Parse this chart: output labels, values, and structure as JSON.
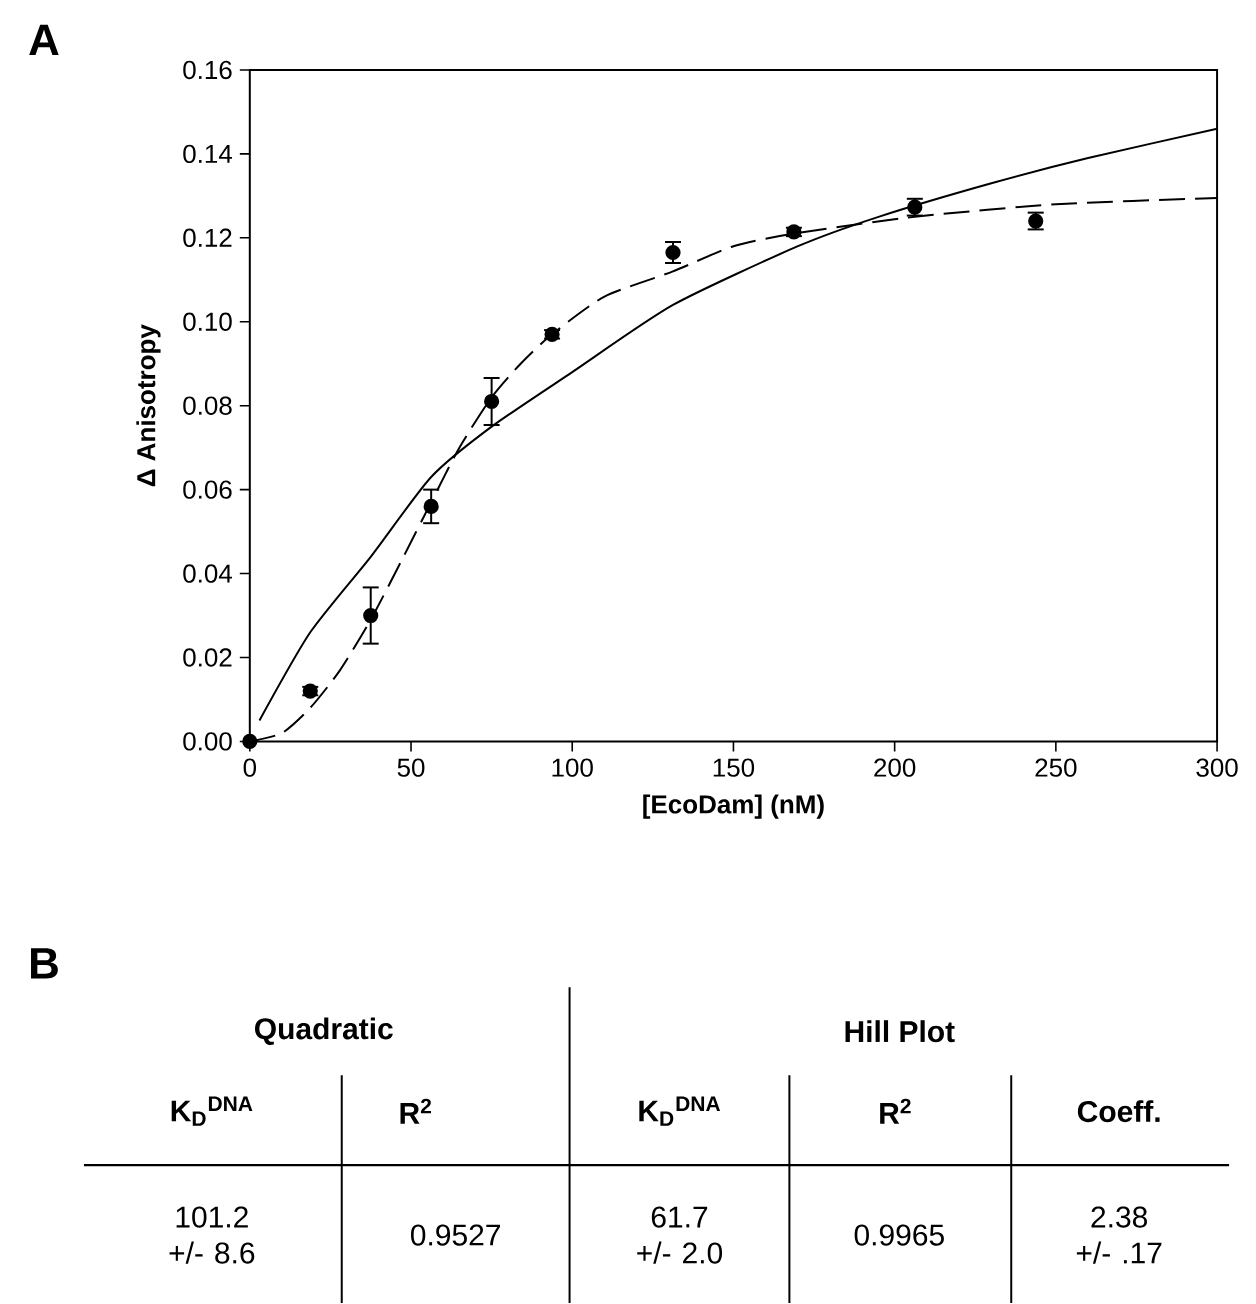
{
  "chart_data": {
    "type": "scatter",
    "xlabel": "[EcoDam] (nM)",
    "ylabel": "Δ Anisotropy",
    "xlim": [
      0,
      300
    ],
    "xticks": [
      0,
      50,
      100,
      150,
      200,
      250,
      300
    ],
    "ylim": [
      0,
      0.16
    ],
    "yticks": [
      {
        "value": 0,
        "label": "0.00"
      },
      {
        "value": 0.02,
        "label": "0.02"
      },
      {
        "value": 0.04,
        "label": "0.04"
      },
      {
        "value": 0.06,
        "label": "0.06"
      },
      {
        "value": 0.08,
        "label": "0.08"
      },
      {
        "value": 0.1,
        "label": "0.10"
      },
      {
        "value": 0.12,
        "label": "0.12"
      },
      {
        "value": 0.14,
        "label": "0.14"
      },
      {
        "value": 0.16,
        "label": "0.16"
      }
    ],
    "grid": false,
    "series": [
      {
        "type": "line",
        "line_style": "solid",
        "marker": "none",
        "color": "#000000",
        "x": [
          3,
          18.75,
          37.5,
          56.25,
          75,
          100,
          131.25,
          170,
          195,
          230,
          260,
          300
        ],
        "values": [
          0.005,
          0.026,
          0.044,
          0.063,
          0.075,
          0.088,
          0.104,
          0.118,
          0.125,
          0.133,
          0.139,
          0.146
        ]
      },
      {
        "type": "line",
        "line_style": "dashed",
        "marker": "none",
        "color": "#000000",
        "x": [
          0,
          10,
          18.75,
          28,
          37.5,
          47,
          56.25,
          65,
          75,
          84,
          93.75,
          110,
          131.25,
          150,
          168.75,
          206.25,
          250,
          300
        ],
        "values": [
          0,
          0.002,
          0.008,
          0.017,
          0.029,
          0.043,
          0.057,
          0.07,
          0.082,
          0.09,
          0.097,
          0.106,
          0.112,
          0.118,
          0.121,
          0.125,
          0.128,
          0.1295
        ]
      },
      {
        "marker": "circle",
        "color": "#000000",
        "x": [
          0,
          18.75,
          37.5,
          56.25,
          75,
          93.75,
          131.25,
          168.75,
          206.25,
          243.75
        ],
        "values": [
          0,
          0.012,
          0.03,
          0.056,
          0.081,
          0.097,
          0.1165,
          0.1214,
          0.1273,
          0.124
        ],
        "errors": [
          null,
          0.001,
          0.0067,
          0.004,
          0.0056,
          0.001,
          0.0025,
          0.001,
          0.002,
          0.002
        ]
      }
    ],
    "annotations": [
      "A",
      "B",
      "Quadratic",
      "Hill Plot",
      "K$_{D}$$^{DNA}$",
      "R$^{2}$",
      "K$_{D}$$^{DNA}$",
      "R$^{2}$",
      "Coeff.",
      "101.2 +/- 8.6",
      "0.9527",
      "61.7 +/- 2.0",
      "0.9965",
      "2.38 +/- .17"
    ]
  }
}
